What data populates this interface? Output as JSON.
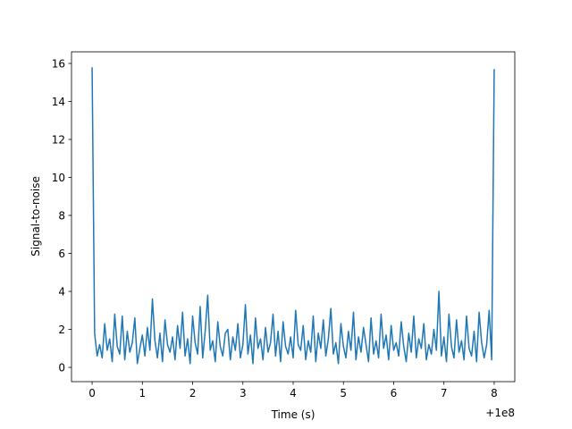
{
  "chart_data": {
    "type": "line",
    "xlabel": "Time (s)",
    "ylabel": "Signal-to-noise",
    "x_offset_label": "+1e8",
    "color": "#1f77b4",
    "xlim": [
      99999999.59,
      100000008.41
    ],
    "ylim": [
      -0.75,
      16.61
    ],
    "xticks": [
      {
        "value": 100000000,
        "label": "0"
      },
      {
        "value": 100000001,
        "label": "1"
      },
      {
        "value": 100000002,
        "label": "2"
      },
      {
        "value": 100000003,
        "label": "3"
      },
      {
        "value": 100000004,
        "label": "4"
      },
      {
        "value": 100000005,
        "label": "5"
      },
      {
        "value": 100000006,
        "label": "6"
      },
      {
        "value": 100000007,
        "label": "7"
      },
      {
        "value": 100000008,
        "label": "8"
      }
    ],
    "yticks": [
      0,
      2,
      4,
      6,
      8,
      10,
      12,
      14,
      16
    ],
    "x": [
      100000000,
      100000000.05,
      100000000.1,
      100000000.15,
      100000000.2,
      100000000.25,
      100000000.3,
      100000000.35,
      100000000.4,
      100000000.45,
      100000000.5,
      100000000.55,
      100000000.6,
      100000000.65,
      100000000.7,
      100000000.75,
      100000000.8,
      100000000.85,
      100000000.9,
      100000000.95,
      100000001,
      100000001.05,
      100000001.1,
      100000001.15,
      100000001.2,
      100000001.25,
      100000001.3,
      100000001.35,
      100000001.4,
      100000001.45,
      100000001.5,
      100000001.55,
      100000001.6,
      100000001.65,
      100000001.7,
      100000001.75,
      100000001.8,
      100000001.85,
      100000001.9,
      100000001.95,
      100000002,
      100000002.05,
      100000002.1,
      100000002.15,
      100000002.2,
      100000002.25,
      100000002.3,
      100000002.35,
      100000002.4,
      100000002.45,
      100000002.5,
      100000002.55,
      100000002.6,
      100000002.65,
      100000002.7,
      100000002.75,
      100000002.8,
      100000002.85,
      100000002.9,
      100000002.95,
      100000003,
      100000003.05,
      100000003.1,
      100000003.15,
      100000003.2,
      100000003.25,
      100000003.3,
      100000003.35,
      100000003.4,
      100000003.45,
      100000003.5,
      100000003.55,
      100000003.6,
      100000003.65,
      100000003.7,
      100000003.75,
      100000003.8,
      100000003.85,
      100000003.9,
      100000003.95,
      100000004,
      100000004.05,
      100000004.1,
      100000004.15,
      100000004.2,
      100000004.25,
      100000004.3,
      100000004.35,
      100000004.4,
      100000004.45,
      100000004.5,
      100000004.55,
      100000004.6,
      100000004.65,
      100000004.7,
      100000004.75,
      100000004.8,
      100000004.85,
      100000004.9,
      100000004.95,
      100000005,
      100000005.05,
      100000005.1,
      100000005.15,
      100000005.2,
      100000005.25,
      100000005.3,
      100000005.35,
      100000005.4,
      100000005.45,
      100000005.5,
      100000005.55,
      100000005.6,
      100000005.65,
      100000005.7,
      100000005.75,
      100000005.8,
      100000005.85,
      100000005.9,
      100000005.95,
      100000006,
      100000006.05,
      100000006.1,
      100000006.15,
      100000006.2,
      100000006.25,
      100000006.3,
      100000006.35,
      100000006.4,
      100000006.45,
      100000006.5,
      100000006.55,
      100000006.6,
      100000006.65,
      100000006.7,
      100000006.75,
      100000006.8,
      100000006.85,
      100000006.9,
      100000006.95,
      100000007,
      100000007.05,
      100000007.1,
      100000007.15,
      100000007.2,
      100000007.25,
      100000007.3,
      100000007.35,
      100000007.4,
      100000007.45,
      100000007.5,
      100000007.55,
      100000007.6,
      100000007.65,
      100000007.7,
      100000007.75,
      100000007.8,
      100000007.85,
      100000007.9,
      100000007.95,
      100000008
    ],
    "values": [
      15.8,
      1.8,
      0.6,
      1.2,
      0.5,
      2.3,
      0.9,
      1.5,
      0.3,
      2.8,
      1.1,
      0.7,
      2.7,
      0.4,
      1.9,
      0.8,
      1.3,
      2.6,
      0.2,
      1.0,
      1.7,
      0.6,
      2.1,
      0.9,
      3.6,
      1.4,
      0.5,
      1.8,
      0.3,
      2.5,
      1.2,
      0.8,
      1.6,
      0.4,
      2.2,
      1.0,
      2.9,
      0.6,
      1.5,
      0.2,
      2.7,
      1.3,
      0.7,
      3.2,
      0.5,
      1.9,
      3.8,
      0.9,
      1.4,
      0.3,
      2.4,
      1.1,
      0.6,
      1.8,
      2.0,
      0.4,
      1.6,
      0.9,
      2.3,
      0.5,
      1.2,
      3.3,
      0.7,
      1.7,
      0.2,
      2.6,
      1.0,
      1.5,
      0.4,
      2.1,
      0.8,
      1.3,
      2.8,
      0.6,
      1.9,
      0.3,
      2.4,
      1.1,
      0.7,
      1.6,
      0.5,
      3.0,
      1.2,
      0.9,
      2.2,
      0.4,
      1.4,
      0.8,
      2.7,
      0.3,
      1.8,
      1.0,
      2.5,
      0.6,
      1.5,
      3.1,
      0.7,
      1.3,
      0.2,
      2.3,
      1.1,
      0.5,
      1.9,
      0.9,
      2.9,
      0.4,
      1.6,
      0.8,
      2.1,
      1.2,
      0.3,
      2.6,
      0.7,
      1.4,
      0.5,
      2.8,
      1.0,
      1.7,
      0.4,
      2.2,
      0.9,
      1.3,
      0.6,
      2.4,
      1.1,
      0.3,
      1.8,
      0.8,
      2.7,
      0.5,
      1.5,
      1.0,
      2.3,
      0.4,
      1.2,
      0.7,
      2.0,
      0.9,
      4.0,
      0.6,
      1.6,
      0.3,
      2.8,
      1.1,
      0.5,
      2.5,
      0.8,
      1.4,
      0.4,
      2.7,
      1.0,
      0.6,
      1.9,
      0.3,
      2.9,
      1.3,
      0.5,
      1.2,
      3.0,
      0.4,
      15.7
    ]
  }
}
